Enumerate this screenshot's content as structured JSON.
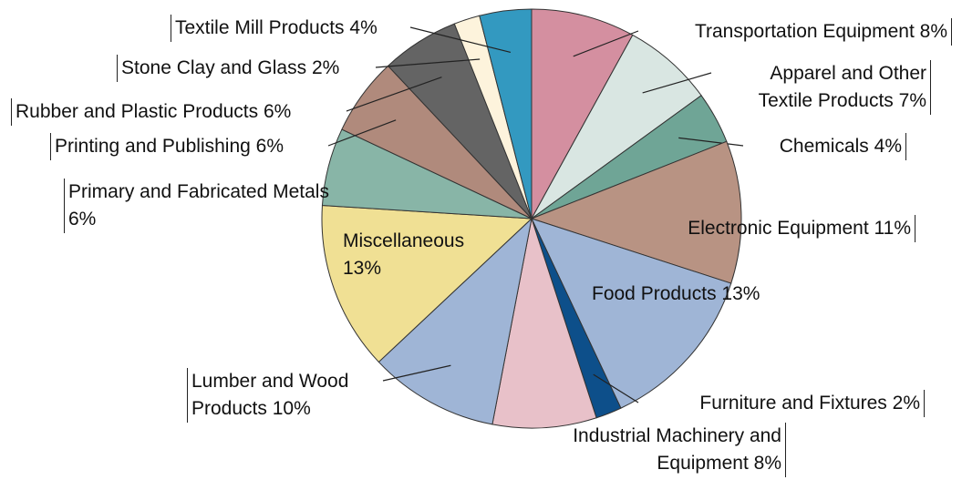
{
  "chart_data": {
    "type": "pie",
    "categories": [
      "Transportation Equipment",
      "Apparel and Other Textile Products",
      "Chemicals",
      "Electronic Equipment",
      "Food Products",
      "Furniture and Fixtures",
      "Industrial Machinery and Equipment",
      "Lumber and Wood Products",
      "Miscellaneous",
      "Primary and Fabricated Metals",
      "Printing and Publishing",
      "Rubber and Plastic Products",
      "Stone Clay and Glass",
      "Textile Mill Products"
    ],
    "values": [
      8,
      7,
      4,
      11,
      13,
      2,
      8,
      10,
      13,
      6,
      6,
      6,
      2,
      4
    ],
    "value_labels": [
      "8%",
      "7%",
      "4%",
      "11%",
      "13%",
      "2%",
      "8%",
      "10%",
      "13%",
      "6%",
      "6%",
      "6%",
      "2%",
      "4%"
    ],
    "colors": [
      "#d48fa0",
      "#d9e6e2",
      "#6fa596",
      "#b89383",
      "#9fb5d6",
      "#0d4f8a",
      "#e8c1c9",
      "#9fb5d6",
      "#f0e094",
      "#88b5a7",
      "#b08a7c",
      "#646464",
      "#fdf3dc",
      "#3399c0"
    ]
  }
}
